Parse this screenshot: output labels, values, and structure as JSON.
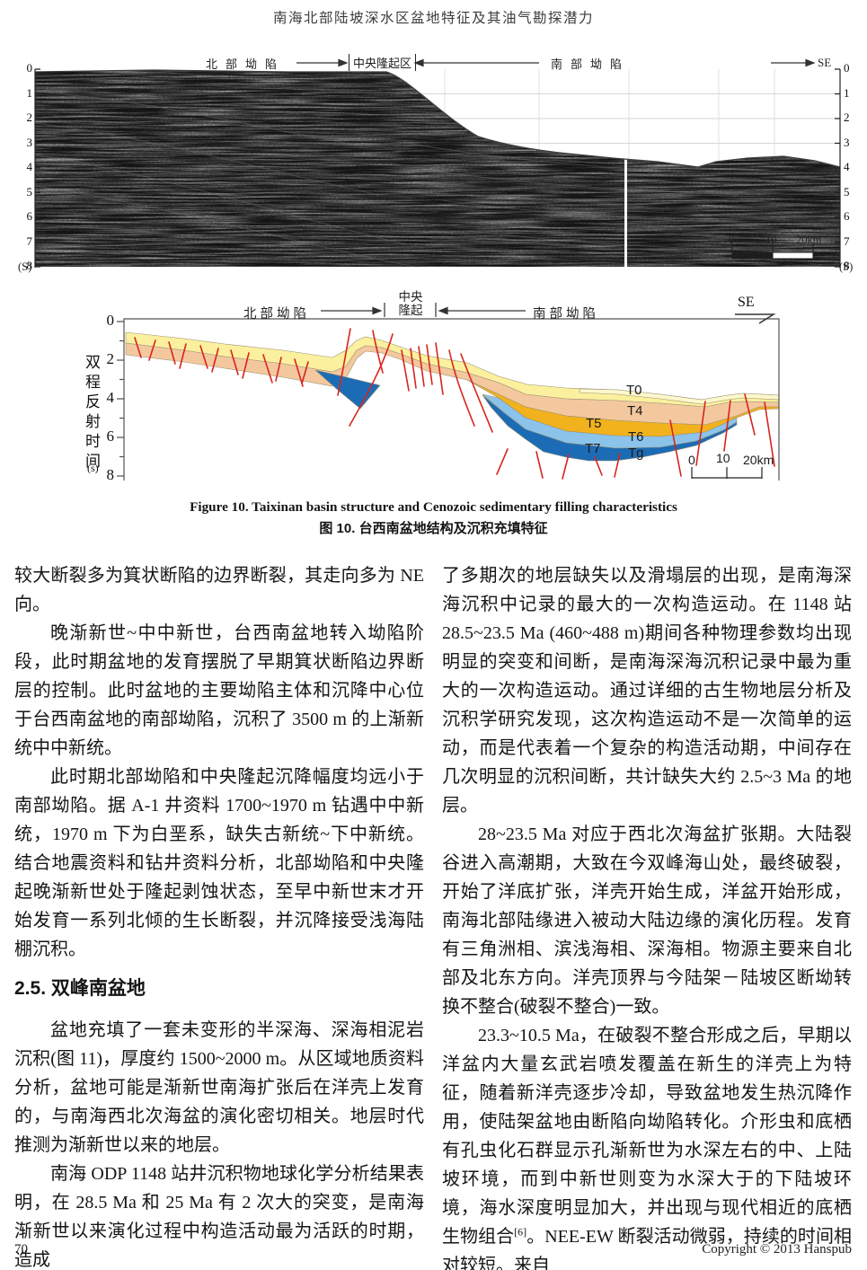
{
  "header": {
    "title": "南海北部陆坡深水区盆地特征及其油气勘探潜力"
  },
  "figure_seismic": {
    "label_north": "北部坳陷",
    "label_central": "中央隆起区",
    "label_south": "南部坳陷",
    "label_se": "SE",
    "axis_ticks": [
      "0",
      "1",
      "2",
      "3",
      "4",
      "5",
      "6",
      "7",
      "8"
    ],
    "axis_unit": "(S)",
    "scale": {
      "n0": "0",
      "n10": "10",
      "n20": "20km"
    }
  },
  "figure_interp": {
    "label_north": "北部坳陷",
    "label_central_line1": "中央",
    "label_central_line2": "隆起",
    "label_south": "南部坳陷",
    "label_se": "SE",
    "axis_title": "双程反射时间",
    "axis_unit": "(s)",
    "axis_ticks": [
      "0",
      "2",
      "4",
      "6",
      "8"
    ],
    "horizons": [
      "T0",
      "T4",
      "T5",
      "T6",
      "T7",
      "Tg"
    ],
    "scale": {
      "n0": "0",
      "n10": "10",
      "n20": "20km"
    },
    "colors": {
      "layer_top_light": "#FDF8CC",
      "layer_yellow": "#FBF09E",
      "layer_peach": "#F4C89E",
      "layer_gold": "#F2B21D",
      "layer_lightblue": "#8BC3EA",
      "layer_darkblue": "#1C6CB5",
      "fault": "#D8251C"
    }
  },
  "caption": {
    "en": "Figure 10. Taixinan basin structure and Cenozoic sedimentary filling characteristics",
    "zh": "图 10. 台西南盆地结构及沉积充填特征"
  },
  "columns": {
    "left": [
      {
        "style": "plain",
        "text": "较大断裂多为箕状断陷的边界断裂，其走向多为 NE 向。"
      },
      {
        "style": "indent",
        "text": "晚渐新世~中中新世，台西南盆地转入坳陷阶段，此时期盆地的发育摆脱了早期箕状断陷边界断层的控制。此时盆地的主要坳陷主体和沉降中心位于台西南盆地的南部坳陷，沉积了 3500 m 的上渐新统中中新统。"
      },
      {
        "style": "indent",
        "text": "此时期北部坳陷和中央隆起沉降幅度均远小于南部坳陷。据 A-1 井资料 1700~1970 m 钻遇中中新统，1970 m 下为白垩系，缺失古新统~下中新统。结合地震资料和钻井资料分析，北部坳陷和中央隆起晚渐新世处于隆起剥蚀状态，至早中新世末才开始发育一系列北倾的生长断裂，并沉降接受浅海陆棚沉积。"
      },
      {
        "style": "heading",
        "text": "2.5. 双峰南盆地"
      },
      {
        "style": "indent",
        "text": "盆地充填了一套未变形的半深海、深海相泥岩沉积(图 11)，厚度约 1500~2000 m。从区域地质资料分析，盆地可能是渐新世南海扩张后在洋壳上发育的，与南海西北次海盆的演化密切相关。地层时代推测为渐新世以来的地层。"
      },
      {
        "style": "indent",
        "text": "南海 ODP 1148 站井沉积物地球化学分析结果表明，在 28.5 Ma 和 25 Ma 有 2 次大的突变，是南海渐新世以来演化过程中构造活动最为活跃的时期，造成"
      }
    ],
    "right": [
      {
        "style": "plain",
        "text": "了多期次的地层缺失以及滑塌层的出现，是南海深海沉积中记录的最大的一次构造运动。在 1148 站 28.5~23.5 Ma (460~488 m)期间各种物理参数均出现明显的突变和间断，是南海深海沉积记录中最为重大的一次构造运动。通过详细的古生物地层分析及沉积学研究发现，这次构造运动不是一次简单的运动，而是代表着一个复杂的构造活动期，中间存在几次明显的沉积间断，共计缺失大约 2.5~3 Ma 的地层。"
      },
      {
        "style": "indent",
        "text": "28~23.5 Ma 对应于西北次海盆扩张期。大陆裂谷进入高潮期，大致在今双峰海山处，最终破裂，开始了洋底扩张，洋壳开始生成，洋盆开始形成，南海北部陆缘进入被动大陆边缘的演化历程。发育有三角洲相、滨浅海相、深海相。物源主要来自北部及北东方向。洋壳顶界与今陆架－陆坡区断坳转换不整合(破裂不整合)一致。"
      },
      {
        "style": "indent",
        "text": "23.3~10.5 Ma，在破裂不整合形成之后，早期以洋盆内大量玄武岩喷发覆盖在新生的洋壳上为特征，随着新洋壳逐步冷却，导致盆地发生热沉降作用，使陆架盆地由断陷向坳陷转化。介形虫和底栖有孔虫化石群显示孔渐新世为水深左右的中、上陆坡环境，而到中新世则变为水深大于的下陆坡环境，海水深度明显加大，并出现与现代相近的底栖生物组合[6]。NEE-EW 断裂活动微弱，持续的时间相对较短。来自"
      }
    ]
  },
  "footer": {
    "page": "70",
    "copyright": "Copyright © 2013 Hanspub"
  }
}
